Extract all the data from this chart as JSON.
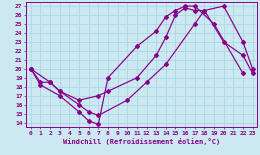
{
  "xlabel": "Windchill (Refroidissement éolien,°C)",
  "xlim": [
    -0.5,
    23.5
  ],
  "ylim": [
    13.5,
    27.5
  ],
  "yticks": [
    14,
    15,
    16,
    17,
    18,
    19,
    20,
    21,
    22,
    23,
    24,
    25,
    26,
    27
  ],
  "xticks": [
    0,
    1,
    2,
    3,
    4,
    5,
    6,
    7,
    8,
    9,
    10,
    11,
    12,
    13,
    14,
    15,
    16,
    17,
    18,
    19,
    20,
    21,
    22,
    23
  ],
  "bg_color": "#cce8f0",
  "grid_color": "#b0d8e8",
  "line_color": "#880088",
  "line1_x": [
    0,
    1,
    3,
    5,
    6,
    7,
    8,
    11,
    13,
    14,
    15,
    16,
    17,
    19,
    22
  ],
  "line1_y": [
    20.0,
    18.2,
    17.0,
    15.2,
    14.2,
    13.8,
    19.0,
    22.5,
    24.2,
    25.8,
    26.5,
    27.0,
    27.0,
    25.0,
    19.5
  ],
  "line2_x": [
    0,
    1,
    2,
    3,
    5,
    7,
    8,
    11,
    13,
    14,
    15,
    16,
    17,
    18,
    20,
    22,
    23
  ],
  "line2_y": [
    20.0,
    18.5,
    18.5,
    17.5,
    16.5,
    17.0,
    17.5,
    19.0,
    21.5,
    23.5,
    26.0,
    26.8,
    26.5,
    26.5,
    23.0,
    21.5,
    19.5
  ],
  "line3_x": [
    0,
    2,
    3,
    5,
    6,
    7,
    10,
    12,
    14,
    17,
    18,
    20,
    22,
    23
  ],
  "line3_y": [
    20.0,
    18.5,
    17.5,
    16.0,
    15.2,
    14.8,
    16.5,
    18.5,
    20.5,
    25.0,
    26.5,
    27.0,
    23.0,
    20.0
  ]
}
